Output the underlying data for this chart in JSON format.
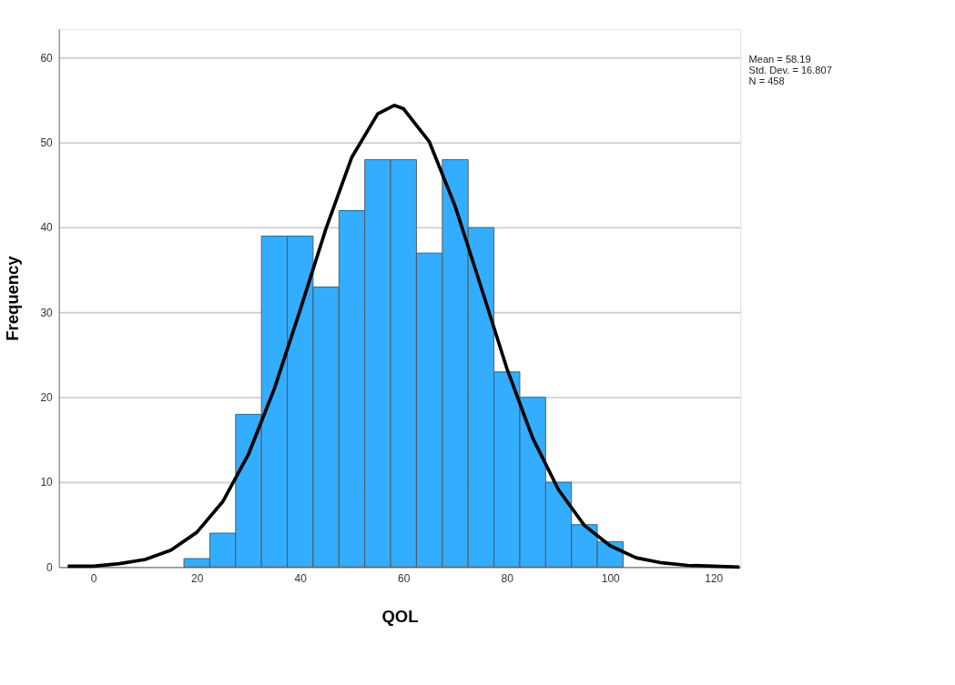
{
  "chart_data": {
    "type": "histogram",
    "xlabel": "QOL",
    "ylabel": "Frequency",
    "bins": [
      17.5,
      22.5,
      27.5,
      32.5,
      37.5,
      42.5,
      47.5,
      52.5,
      57.5,
      62.5,
      67.5,
      72.5,
      77.5,
      82.5,
      87.5,
      92.5,
      97.5,
      102.5
    ],
    "values": [
      1,
      4,
      18,
      39,
      39,
      33,
      42,
      48,
      48,
      37,
      48,
      40,
      23,
      20,
      10,
      5,
      3
    ],
    "color": "#33adff",
    "series": [
      {
        "type": "line",
        "color": "#000000",
        "x": [
          -5,
          0,
          5,
          10,
          15,
          20,
          25,
          30,
          35,
          40,
          45,
          50,
          55,
          58.19,
          60,
          65,
          70,
          75,
          80,
          85,
          90,
          95,
          100,
          105,
          110,
          115,
          120,
          125
        ],
        "values": [
          0.1,
          0.1,
          0.4,
          0.9,
          2.0,
          4.1,
          7.7,
          13.3,
          21.0,
          30.3,
          39.9,
          48.3,
          53.4,
          54.4,
          54.0,
          50.1,
          42.5,
          33.0,
          23.4,
          15.2,
          9.1,
          4.9,
          2.5,
          1.1,
          0.5,
          0.2,
          0.1,
          0.0
        ]
      }
    ],
    "xlim": [
      -6.7,
      125.2
    ],
    "ylim": [
      0,
      63.4
    ],
    "xticks": [
      0,
      20,
      40,
      60,
      80,
      100,
      120
    ],
    "yticks": [
      0,
      10,
      20,
      30,
      40,
      50,
      60
    ],
    "grid": "y",
    "annotations": [
      "Mean = 58.19",
      "Std. Dev. = 16.807",
      "N = 458"
    ]
  }
}
